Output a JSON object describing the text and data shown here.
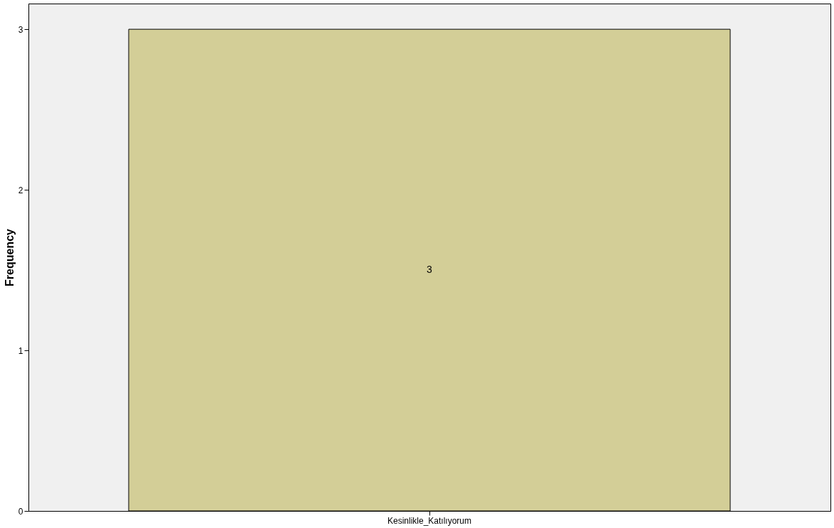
{
  "chart_data": {
    "type": "bar",
    "ylabel": "Frequency",
    "categories": [
      "Kesinlikle_Katılıyorum"
    ],
    "values": [
      3
    ],
    "color": "#d3ce97",
    "ylim": [
      0,
      3.16
    ],
    "yticks": [
      0,
      1,
      2,
      3
    ],
    "grid": false,
    "data_labels": true
  }
}
